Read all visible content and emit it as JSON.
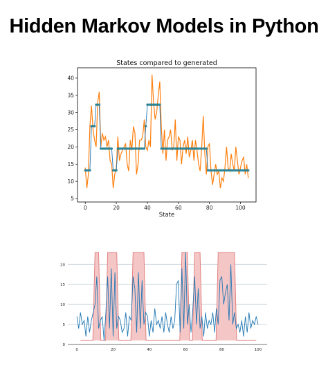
{
  "page": {
    "title": "Hidden Markov Models in Python"
  },
  "chart_data": [
    {
      "type": "line",
      "title": "States compared to generated",
      "xlabel": "State",
      "ylabel": "",
      "xlim": [
        -5,
        110
      ],
      "ylim": [
        4,
        43
      ],
      "xticks": [
        0,
        20,
        40,
        60,
        80,
        100
      ],
      "yticks": [
        5,
        10,
        15,
        20,
        25,
        30,
        35,
        40
      ],
      "grid": false,
      "series": [
        {
          "role": "generated",
          "color": "#ff7f0e",
          "x": [
            0,
            1,
            2,
            3,
            4,
            5,
            6,
            7,
            8,
            9,
            10,
            11,
            12,
            13,
            14,
            15,
            16,
            17,
            18,
            19,
            20,
            21,
            22,
            23,
            24,
            25,
            26,
            27,
            28,
            29,
            30,
            31,
            32,
            33,
            34,
            35,
            36,
            37,
            38,
            39,
            40,
            41,
            42,
            43,
            44,
            45,
            46,
            47,
            48,
            49,
            50,
            51,
            52,
            53,
            54,
            55,
            56,
            57,
            58,
            59,
            60,
            61,
            62,
            63,
            64,
            65,
            66,
            67,
            68,
            69,
            70,
            71,
            72,
            73,
            74,
            75,
            76,
            77,
            78,
            79,
            80,
            81,
            82,
            83,
            84,
            85,
            86,
            87,
            88,
            89,
            90,
            91,
            92,
            93,
            94,
            95,
            96,
            97,
            98,
            99,
            100,
            101,
            102,
            103,
            104,
            105
          ],
          "values": [
            14,
            8,
            12,
            26,
            32,
            25,
            22,
            20,
            33,
            36,
            20,
            24,
            22,
            23,
            20,
            22,
            16,
            15,
            8,
            12,
            14,
            23,
            16,
            18,
            19,
            20,
            21,
            15,
            13,
            22,
            19,
            26,
            24,
            12,
            15,
            22,
            22,
            23,
            28,
            20,
            19,
            22,
            20,
            41,
            33,
            28,
            30,
            35,
            39,
            26,
            18,
            25,
            16,
            22,
            23,
            25,
            19,
            20,
            28,
            16,
            23,
            22,
            15,
            20,
            22,
            18,
            23,
            17,
            19,
            22,
            16,
            22,
            19,
            15,
            13,
            20,
            29,
            18,
            12,
            20,
            21,
            13,
            9,
            12,
            15,
            12,
            13,
            8,
            11,
            10,
            14,
            20,
            14,
            13,
            18,
            15,
            13,
            20,
            16,
            12,
            14,
            16,
            17,
            12,
            15,
            11
          ]
        },
        {
          "role": "states",
          "color": "#1f77b4",
          "x": [
            0,
            1,
            2,
            3,
            4,
            5,
            6,
            7,
            8,
            9,
            10,
            11,
            12,
            13,
            14,
            15,
            16,
            17,
            18,
            19,
            20,
            21,
            22,
            23,
            24,
            25,
            26,
            27,
            28,
            29,
            30,
            31,
            32,
            33,
            34,
            35,
            36,
            37,
            38,
            39,
            40,
            41,
            42,
            43,
            44,
            45,
            46,
            47,
            48,
            49,
            50,
            51,
            52,
            53,
            54,
            55,
            56,
            57,
            58,
            59,
            60,
            61,
            62,
            63,
            64,
            65,
            66,
            67,
            68,
            69,
            70,
            71,
            72,
            73,
            74,
            75,
            76,
            77,
            78,
            79,
            80,
            81,
            82,
            83,
            84,
            85,
            86,
            87,
            88,
            89,
            90,
            91,
            92,
            93,
            94,
            95,
            96,
            97,
            98,
            99,
            100,
            101,
            102,
            103,
            104,
            105
          ],
          "values": [
            13.2,
            13.2,
            13.2,
            13.2,
            26.0,
            26.0,
            26.0,
            32.3,
            32.3,
            32.3,
            19.5,
            19.5,
            19.5,
            19.5,
            19.5,
            19.5,
            19.5,
            19.5,
            13.2,
            13.2,
            13.2,
            19.5,
            19.5,
            19.5,
            19.5,
            19.5,
            19.5,
            19.5,
            19.5,
            19.5,
            19.5,
            19.5,
            19.5,
            19.5,
            19.5,
            19.5,
            19.5,
            19.5,
            19.5,
            26.0,
            32.3,
            32.3,
            32.3,
            32.3,
            32.3,
            32.3,
            32.3,
            32.3,
            32.3,
            19.5,
            19.5,
            19.5,
            19.5,
            19.5,
            19.5,
            19.5,
            19.5,
            19.5,
            19.5,
            19.5,
            19.5,
            19.5,
            19.5,
            19.5,
            19.5,
            19.5,
            19.5,
            19.5,
            19.5,
            19.5,
            19.5,
            19.5,
            19.5,
            19.5,
            19.5,
            19.5,
            19.5,
            19.5,
            19.5,
            13.2,
            13.2,
            13.2,
            13.2,
            13.2,
            13.2,
            13.2,
            13.2,
            13.2,
            13.2,
            13.2,
            13.2,
            13.2,
            13.2,
            13.2,
            13.2,
            13.2,
            13.2,
            13.2,
            13.2,
            13.2,
            13.2,
            13.2,
            13.2,
            13.2,
            13.2,
            13.2
          ]
        }
      ]
    },
    {
      "type": "line",
      "title": "",
      "xlabel": "",
      "ylabel": "",
      "xlim": [
        -5,
        105
      ],
      "ylim": [
        0,
        23.5
      ],
      "xticks": [
        0,
        20,
        40,
        60,
        80,
        100
      ],
      "yticks": [
        0,
        5,
        10,
        15,
        20
      ],
      "grid": true,
      "shade_color": "#f4c6c6",
      "shade_edge": "#e07a7a",
      "regime_low": 1,
      "regime_high": 23,
      "regimes": [
        {
          "start": 10,
          "end": 12,
          "level": "high"
        },
        {
          "start": 17,
          "end": 22,
          "level": "high"
        },
        {
          "start": 31,
          "end": 37,
          "level": "high"
        },
        {
          "start": 58,
          "end": 61,
          "level": "high"
        },
        {
          "start": 65,
          "end": 68,
          "level": "high"
        },
        {
          "start": 78,
          "end": 87,
          "level": "high"
        }
      ],
      "series": [
        {
          "role": "observations",
          "color": "#1f77b4",
          "x": [
            0,
            1,
            2,
            3,
            4,
            5,
            6,
            7,
            8,
            9,
            10,
            11,
            12,
            13,
            14,
            15,
            16,
            17,
            18,
            19,
            20,
            21,
            22,
            23,
            24,
            25,
            26,
            27,
            28,
            29,
            30,
            31,
            32,
            33,
            34,
            35,
            36,
            37,
            38,
            39,
            40,
            41,
            42,
            43,
            44,
            45,
            46,
            47,
            48,
            49,
            50,
            51,
            52,
            53,
            54,
            55,
            56,
            57,
            58,
            59,
            60,
            61,
            62,
            63,
            64,
            65,
            66,
            67,
            68,
            69,
            70,
            71,
            72,
            73,
            74,
            75,
            76,
            77,
            78,
            79,
            80,
            81,
            82,
            83,
            84,
            85,
            86,
            87,
            88,
            89,
            90,
            91,
            92,
            93,
            94,
            95,
            96,
            97,
            98,
            99,
            100
          ],
          "values": [
            7,
            4,
            8,
            5,
            6,
            2,
            7,
            3,
            6,
            8,
            10,
            17,
            4,
            6,
            7,
            1,
            8,
            17,
            4,
            19,
            2,
            18,
            4,
            7,
            6,
            3,
            4,
            8,
            2,
            7,
            6,
            17,
            14,
            3,
            18,
            4,
            16,
            5,
            8,
            7,
            2,
            6,
            3,
            9,
            5,
            6,
            4,
            7,
            3,
            8,
            5,
            3,
            7,
            4,
            6,
            15,
            16,
            3,
            19,
            4,
            23,
            5,
            10,
            3,
            9,
            17,
            5,
            14,
            4,
            7,
            2,
            8,
            4,
            6,
            5,
            8,
            3,
            9,
            5,
            16,
            17,
            10,
            13,
            15,
            6,
            20,
            5,
            8,
            4,
            5,
            3,
            6,
            2,
            7,
            3,
            8,
            4,
            6,
            5,
            7,
            5
          ]
        }
      ]
    }
  ]
}
